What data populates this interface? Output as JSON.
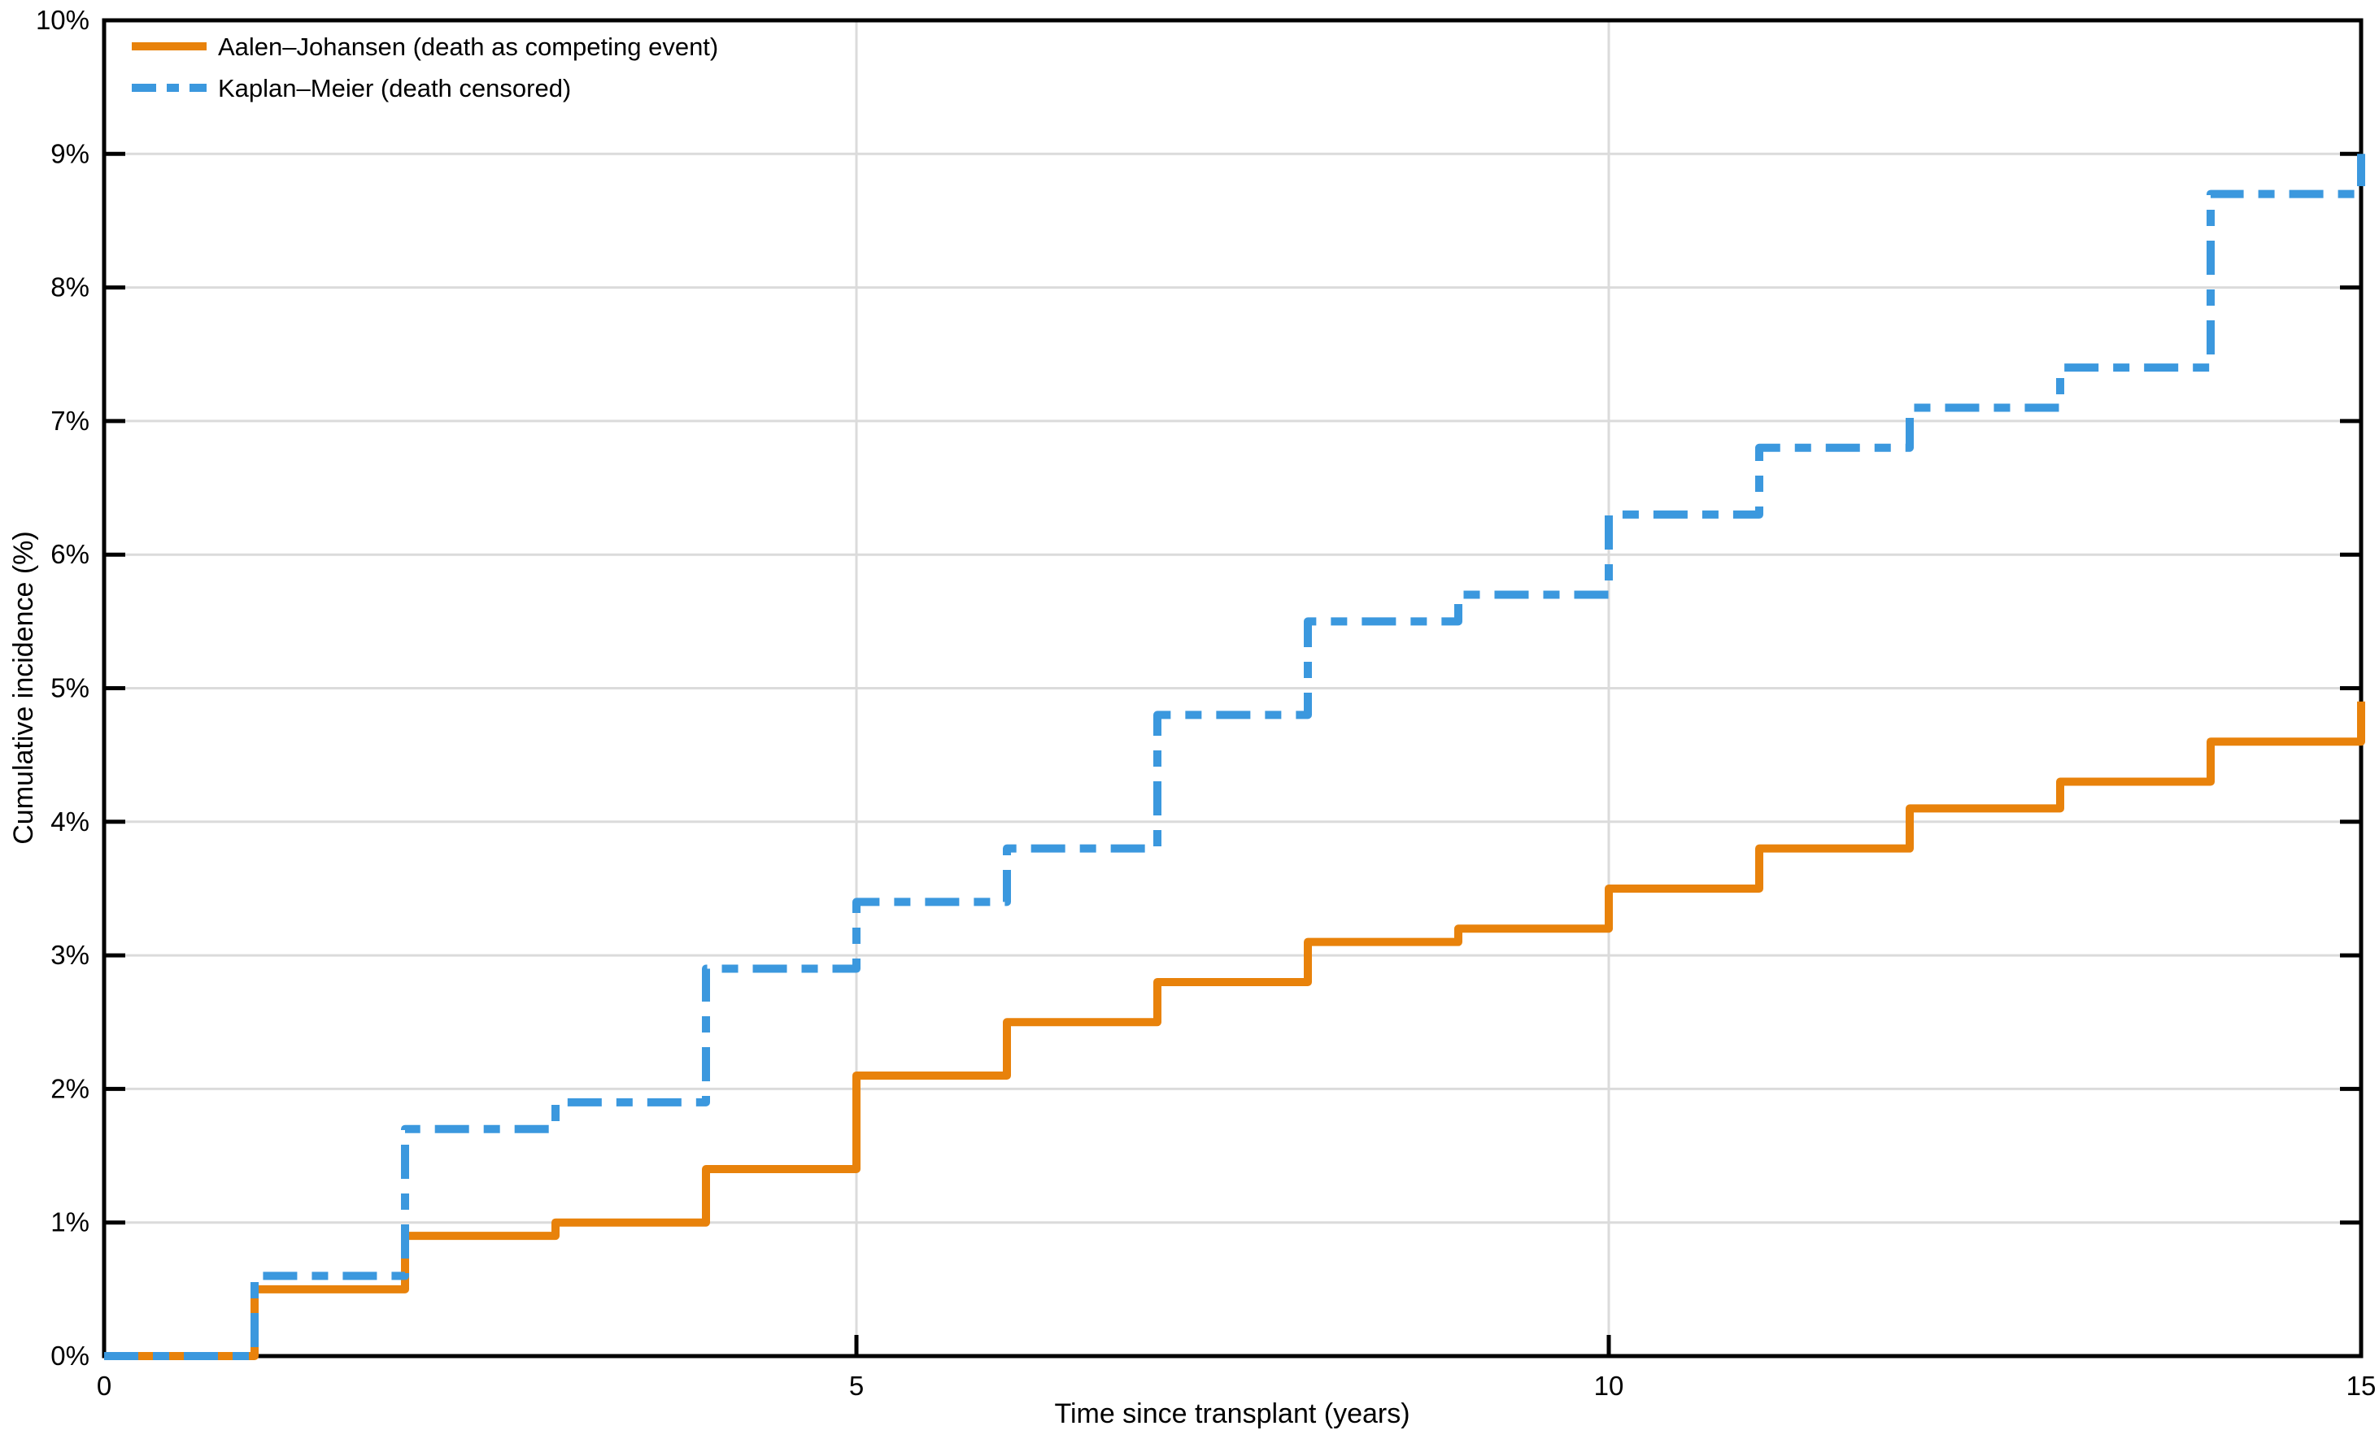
{
  "figure": {
    "x_axis_title": "Time since transplant (years)",
    "y_axis_title": "Cumulative incidence (%)"
  },
  "legend": {
    "items": [
      {
        "label": "Aalen–Johansen (death as competing event)",
        "color": "#e8820b",
        "line_style": "solid"
      },
      {
        "label": "Kaplan–Meier (death censored)",
        "color": "#3b98de",
        "line_style": "dash-dot"
      }
    ]
  },
  "chart_data": {
    "type": "line",
    "subtype": "step-post-cumulative-incidence",
    "title": "",
    "xlabel": "Time since transplant (years)",
    "ylabel": "Cumulative incidence (%)",
    "xlim": [
      0,
      15
    ],
    "ylim": [
      0,
      10
    ],
    "x_ticks": [
      0,
      5,
      10,
      15
    ],
    "x_tick_labels": [
      "0",
      "5",
      "10",
      "15"
    ],
    "y_ticks": [
      0,
      1,
      2,
      3,
      4,
      5,
      6,
      7,
      8,
      9,
      10
    ],
    "y_tick_labels": [
      "0%",
      "1%",
      "2%",
      "3%",
      "4%",
      "5%",
      "6%",
      "7%",
      "8%",
      "9%",
      "10%"
    ],
    "grid": "on",
    "legend_position": "top-left-inside",
    "start_value_percent": 0,
    "step_times_years": [
      1,
      2,
      3,
      4,
      5,
      6,
      7,
      8,
      9,
      10,
      11,
      12,
      13,
      14,
      15
    ],
    "series": [
      {
        "name": "Aalen–Johansen (death as competing event)",
        "color": "#e8820b",
        "line_style": "solid",
        "values_percent": [
          0.5,
          0.9,
          1.0,
          1.4,
          2.1,
          2.5,
          2.8,
          3.1,
          3.2,
          3.5,
          3.8,
          4.1,
          4.3,
          4.6,
          4.9
        ]
      },
      {
        "name": "Kaplan–Meier (death censored)",
        "color": "#3b98de",
        "line_style": "dash-dot",
        "values_percent": [
          0.6,
          1.7,
          1.9,
          2.9,
          3.4,
          3.8,
          4.8,
          5.5,
          5.7,
          6.3,
          6.8,
          7.1,
          7.4,
          8.7,
          9.0
        ]
      }
    ]
  }
}
